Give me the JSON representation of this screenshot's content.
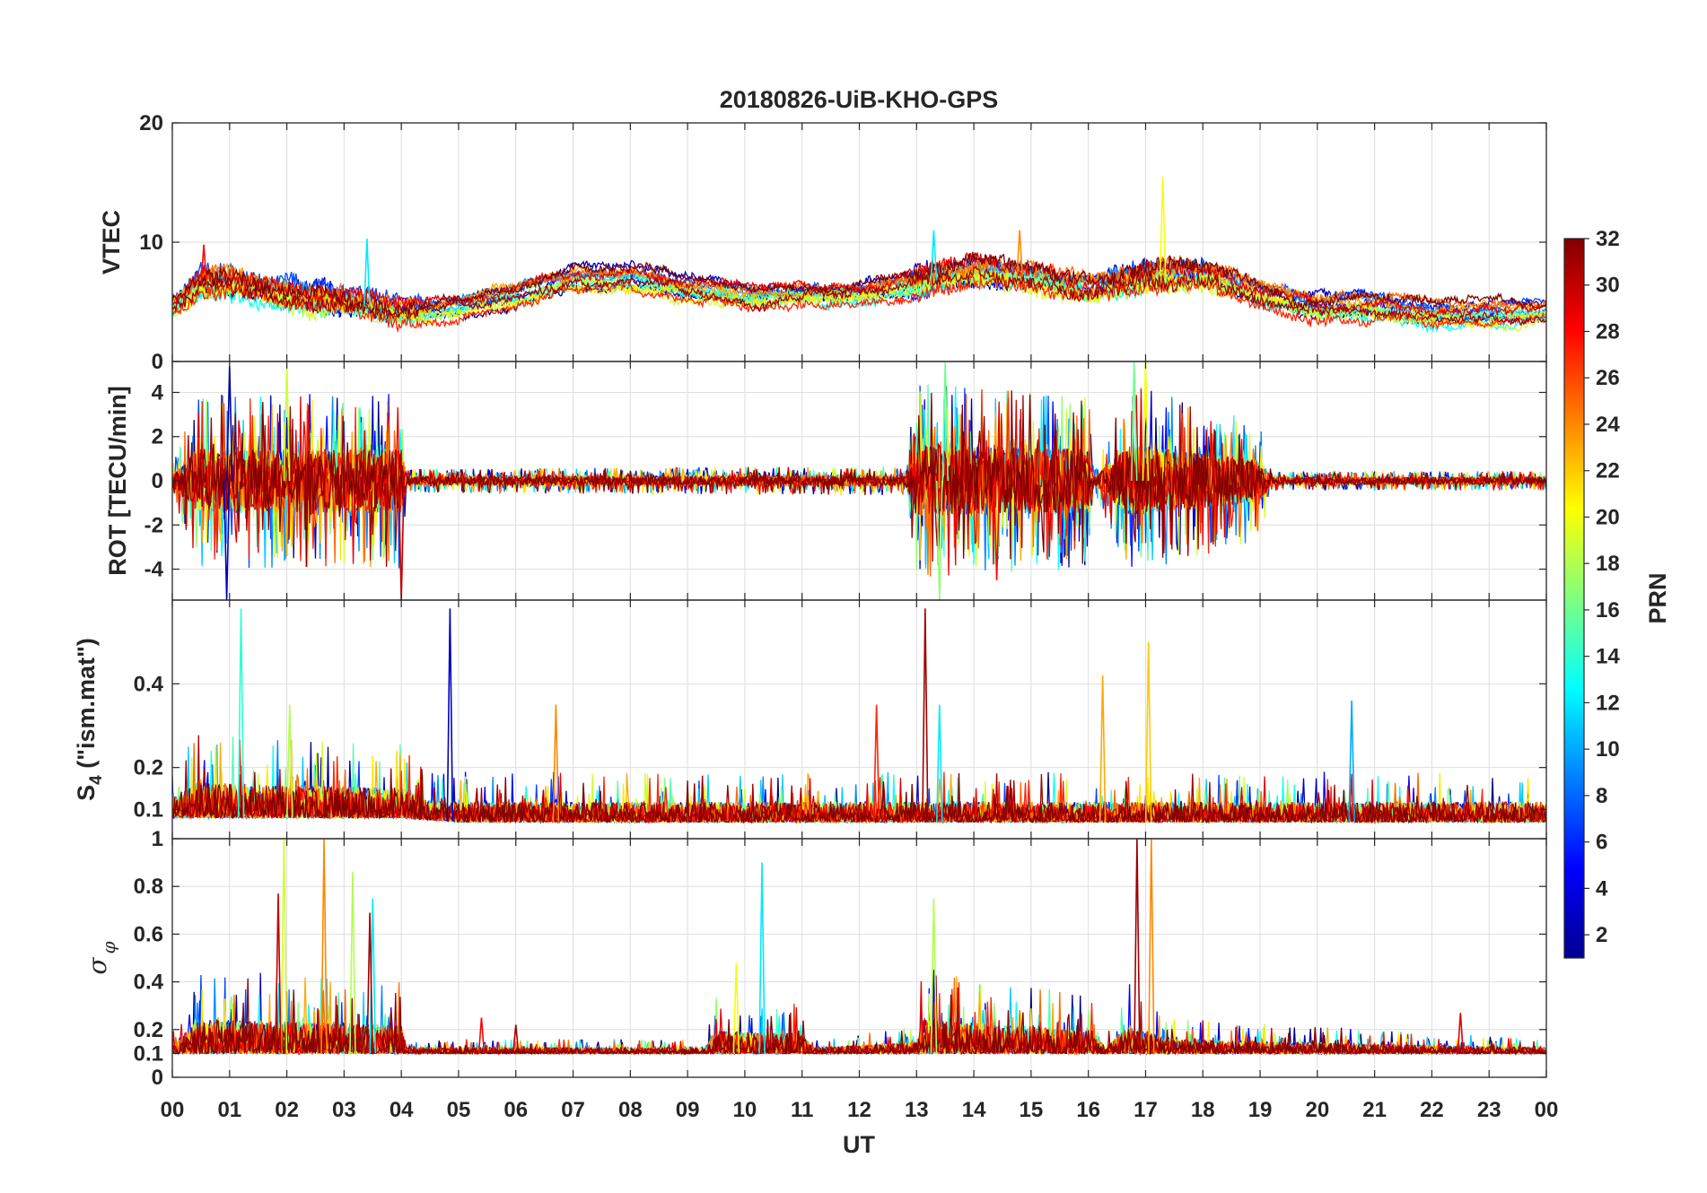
{
  "chart_data": {
    "type": "line",
    "title": "20180826-UiB-KHO-GPS",
    "xlabel": "UT",
    "xlim": [
      0,
      24
    ],
    "x_ticks": [
      0,
      1,
      2,
      3,
      4,
      5,
      6,
      7,
      8,
      9,
      10,
      11,
      12,
      13,
      14,
      15,
      16,
      17,
      18,
      19,
      20,
      21,
      22,
      23,
      24
    ],
    "x_tick_labels": [
      "00",
      "01",
      "02",
      "03",
      "04",
      "05",
      "06",
      "07",
      "08",
      "09",
      "10",
      "11",
      "12",
      "13",
      "14",
      "15",
      "16",
      "17",
      "18",
      "19",
      "20",
      "21",
      "22",
      "23",
      "00"
    ],
    "grid": true,
    "colorbar": {
      "label": "PRN",
      "range": [
        1,
        32
      ],
      "colormap": "jet",
      "ticks": [
        2,
        4,
        6,
        8,
        10,
        12,
        14,
        16,
        18,
        20,
        22,
        24,
        26,
        28,
        30,
        32
      ],
      "tick_labels": [
        "2",
        "4",
        "6",
        "8",
        "10",
        "12",
        "14",
        "16",
        "18",
        "20",
        "22",
        "24",
        "26",
        "28",
        "30",
        "32"
      ]
    },
    "panels": [
      {
        "id": "vtec",
        "ylabel": "VTEC",
        "ylim": [
          0,
          20
        ],
        "y_ticks": [
          0,
          10,
          20
        ],
        "y_tick_labels": [
          "0",
          "10",
          "20"
        ],
        "baseline": [
          [
            0,
            4.5
          ],
          [
            0.5,
            6.5
          ],
          [
            1,
            6.5
          ],
          [
            2,
            5.5
          ],
          [
            3,
            5
          ],
          [
            4,
            4
          ],
          [
            5,
            4.5
          ],
          [
            6,
            5.5
          ],
          [
            7,
            7
          ],
          [
            8,
            7
          ],
          [
            9,
            6
          ],
          [
            10,
            5.5
          ],
          [
            11,
            5.5
          ],
          [
            12,
            5.5
          ],
          [
            13,
            6.5
          ],
          [
            14,
            7.5
          ],
          [
            15,
            7
          ],
          [
            16,
            6
          ],
          [
            17,
            7
          ],
          [
            18,
            7.5
          ],
          [
            19,
            5.5
          ],
          [
            20,
            4.5
          ],
          [
            21,
            4.5
          ],
          [
            22,
            4
          ],
          [
            23,
            4
          ],
          [
            24,
            4
          ]
        ],
        "noise": [
          [
            0,
            0.6
          ],
          [
            0.5,
            1.4
          ],
          [
            4,
            1.2
          ],
          [
            4.5,
            0.5
          ],
          [
            12.8,
            0.6
          ],
          [
            13,
            1.2
          ],
          [
            16,
            1
          ],
          [
            16.8,
            1.4
          ],
          [
            19,
            0.8
          ],
          [
            24,
            0.4
          ]
        ],
        "spikes": [
          [
            17.3,
            15.5,
            20
          ],
          [
            14.8,
            11,
            24
          ],
          [
            13.3,
            11,
            12
          ],
          [
            3.4,
            10.3,
            12
          ],
          [
            0.55,
            9.8,
            28
          ]
        ]
      },
      {
        "id": "rot",
        "ylabel": "ROT [TECU/min]",
        "ylim": [
          -5.4,
          5.4
        ],
        "y_ticks": [
          -4,
          -2,
          0,
          2,
          4
        ],
        "y_tick_labels": [
          "-4",
          "-2",
          "0",
          "2",
          "4"
        ],
        "noise": [
          [
            0,
            0.3
          ],
          [
            0.45,
            1.8
          ],
          [
            4,
            1.8
          ],
          [
            4.1,
            0.25
          ],
          [
            12.8,
            0.3
          ],
          [
            13,
            2
          ],
          [
            16,
            1.8
          ],
          [
            16.1,
            0.2
          ],
          [
            16.7,
            2
          ],
          [
            19,
            1.2
          ],
          [
            19.2,
            0.2
          ],
          [
            24,
            0.2
          ]
        ],
        "spikes": [
          [
            0.95,
            -5.4,
            3
          ],
          [
            1,
            5.2,
            2
          ],
          [
            2,
            5.4,
            19
          ],
          [
            4,
            -5.4,
            30
          ],
          [
            13.4,
            -5.4,
            17
          ],
          [
            13.5,
            5.4,
            16
          ],
          [
            16.8,
            5.4,
            16
          ],
          [
            17,
            5.4,
            20
          ],
          [
            14.4,
            -4.5,
            28
          ]
        ]
      },
      {
        "id": "s4",
        "ylabel": "S4 (\"ism.mat\")",
        "ylim": [
          0.03,
          0.6
        ],
        "y_ticks": [
          0.1,
          0.2,
          0.4
        ],
        "y_tick_labels": [
          "0.1",
          "0.2",
          "0.4"
        ],
        "baseline": [
          [
            0,
            0.08
          ],
          [
            4,
            0.08
          ],
          [
            5,
            0.07
          ],
          [
            24,
            0.07
          ]
        ],
        "noise": [
          [
            0,
            0.04
          ],
          [
            0.4,
            0.07
          ],
          [
            4,
            0.06
          ],
          [
            4.5,
            0.04
          ],
          [
            24,
            0.04
          ]
        ],
        "spikes": [
          [
            1.2,
            0.58,
            14
          ],
          [
            4.85,
            0.58,
            3
          ],
          [
            13.15,
            0.58,
            31
          ],
          [
            17.05,
            0.5,
            22
          ],
          [
            16.25,
            0.42,
            23
          ],
          [
            20.6,
            0.36,
            10
          ],
          [
            2.05,
            0.35,
            18
          ],
          [
            6.7,
            0.35,
            24
          ],
          [
            12.3,
            0.35,
            27
          ],
          [
            13.4,
            0.35,
            12
          ]
        ]
      },
      {
        "id": "sigma-phi",
        "ylabel": "σ φ",
        "ylim": [
          0,
          1
        ],
        "y_ticks": [
          0,
          0.1,
          0.2,
          0.4,
          0.6,
          0.8,
          1
        ],
        "y_tick_labels": [
          "0",
          "0.1",
          "0.2",
          "0.4",
          "0.6",
          "0.8",
          "1"
        ],
        "baseline": [
          [
            0,
            0.1
          ],
          [
            24,
            0.1
          ]
        ],
        "noise": [
          [
            0,
            0.03
          ],
          [
            0.45,
            0.12
          ],
          [
            4,
            0.1
          ],
          [
            4.1,
            0.02
          ],
          [
            9.3,
            0.02
          ],
          [
            9.5,
            0.08
          ],
          [
            11,
            0.07
          ],
          [
            11.2,
            0.02
          ],
          [
            13,
            0.04
          ],
          [
            13.1,
            0.12
          ],
          [
            16.1,
            0.08
          ],
          [
            16.3,
            0.02
          ],
          [
            16.7,
            0.1
          ],
          [
            17.4,
            0.05
          ],
          [
            19.5,
            0.04
          ],
          [
            24,
            0.02
          ]
        ],
        "spikes": [
          [
            1.95,
            1,
            19
          ],
          [
            2.65,
            1,
            24
          ],
          [
            16.85,
            1,
            31
          ],
          [
            17.1,
            1,
            24
          ],
          [
            1.85,
            0.77,
            30
          ],
          [
            10.3,
            0.9,
            12
          ],
          [
            3.15,
            0.86,
            18
          ],
          [
            3.5,
            0.75,
            12
          ],
          [
            3.45,
            0.69,
            31
          ],
          [
            13.3,
            0.75,
            18
          ],
          [
            9.85,
            0.48,
            20
          ],
          [
            22.5,
            0.27,
            29
          ],
          [
            5.4,
            0.25,
            28
          ],
          [
            6,
            0.22,
            31
          ]
        ]
      }
    ]
  }
}
